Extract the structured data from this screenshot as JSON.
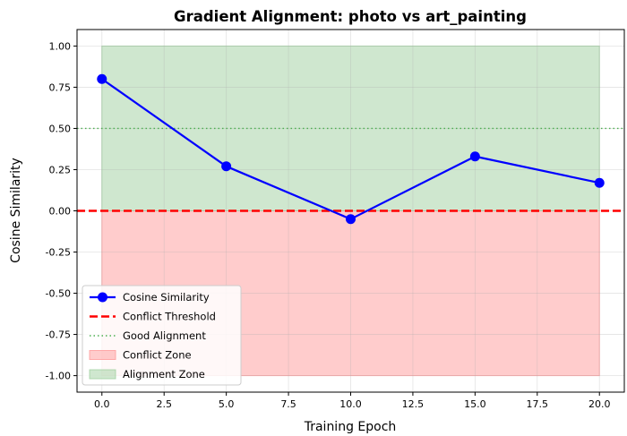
{
  "chart_data": {
    "type": "line",
    "title": "Gradient Alignment: photo vs art_painting",
    "xlabel": "Training Epoch",
    "ylabel": "Cosine Similarity",
    "xlim": [
      -1,
      21
    ],
    "ylim": [
      -1.1,
      1.1
    ],
    "xticks": [
      "0.0",
      "2.5",
      "5.0",
      "7.5",
      "10.0",
      "12.5",
      "15.0",
      "17.5",
      "20.0"
    ],
    "yticks": [
      "-1.00",
      "-0.75",
      "-0.50",
      "-0.25",
      "0.00",
      "0.25",
      "0.50",
      "0.75",
      "1.00"
    ],
    "grid": true,
    "legend_position": "lower-left",
    "series": [
      {
        "name": "Cosine Similarity",
        "x": [
          0,
          5,
          10,
          15,
          20
        ],
        "y": [
          0.8,
          0.27,
          -0.05,
          0.33,
          0.17
        ],
        "color": "#0000ff",
        "style": "line-with-markers"
      }
    ],
    "reference_lines": [
      {
        "name": "Conflict Threshold",
        "y": 0.0,
        "color": "#ff0000",
        "style": "dashed"
      },
      {
        "name": "Good Alignment",
        "y": 0.5,
        "color": "#4caf50",
        "style": "dotted"
      }
    ],
    "bands": [
      {
        "name": "Conflict Zone",
        "x_range": [
          0,
          20
        ],
        "y_range": [
          -1.0,
          0.0
        ],
        "color": "#ff9999"
      },
      {
        "name": "Alignment Zone",
        "x_range": [
          0,
          20
        ],
        "y_range": [
          0.0,
          1.0
        ],
        "color": "#9fcf9f"
      }
    ],
    "legend": [
      "Cosine Similarity",
      "Conflict Threshold",
      "Good Alignment",
      "Conflict Zone",
      "Alignment Zone"
    ]
  }
}
